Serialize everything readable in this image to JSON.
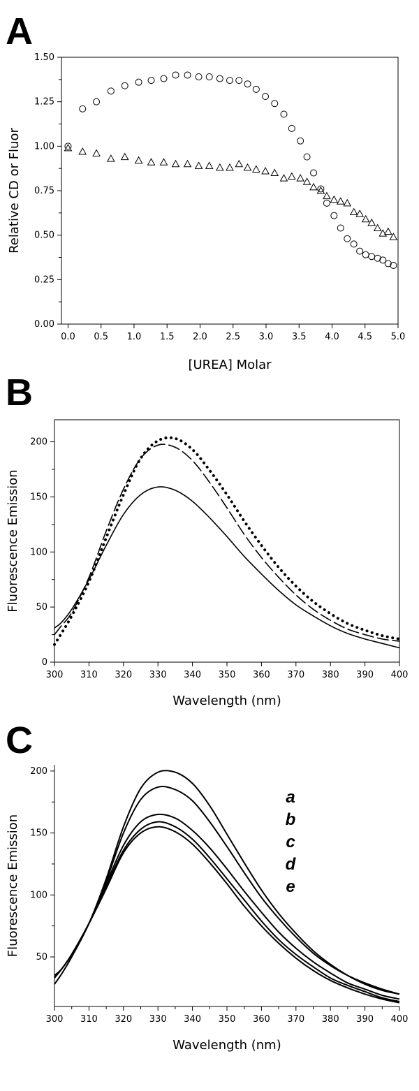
{
  "panels": [
    {
      "letter": "A"
    },
    {
      "letter": "B"
    },
    {
      "letter": "C"
    }
  ],
  "chart_data": [
    {
      "type": "scatter",
      "xlabel": "[UREA] Molar",
      "ylabel": "Relative CD or Fluor",
      "xlim": [
        -0.1,
        5.0
      ],
      "ylim": [
        0,
        1.5
      ],
      "xticks": [
        "0.0",
        "0.5",
        "1.0",
        "1.5",
        "2.0",
        "2.5",
        "3.0",
        "3.5",
        "4.0",
        "4.5",
        "5.0"
      ],
      "yticks": [
        "0.00",
        "0.25",
        "0.50",
        "0.75",
        "1.00",
        "1.25",
        "1.50"
      ],
      "grid": false,
      "series": [
        {
          "marker": "circle",
          "x": [
            0.0,
            0.22,
            0.43,
            0.65,
            0.86,
            1.07,
            1.26,
            1.45,
            1.63,
            1.81,
            1.98,
            2.14,
            2.3,
            2.45,
            2.59,
            2.72,
            2.85,
            2.99,
            3.13,
            3.27,
            3.39,
            3.52,
            3.62,
            3.72,
            3.83,
            3.92,
            4.03,
            4.13,
            4.23,
            4.33,
            4.42,
            4.51,
            4.6,
            4.69,
            4.77,
            4.85,
            4.93
          ],
          "y": [
            1.0,
            1.21,
            1.25,
            1.31,
            1.34,
            1.36,
            1.37,
            1.38,
            1.4,
            1.4,
            1.39,
            1.39,
            1.38,
            1.37,
            1.37,
            1.35,
            1.32,
            1.28,
            1.24,
            1.18,
            1.1,
            1.03,
            0.94,
            0.85,
            0.76,
            0.68,
            0.61,
            0.54,
            0.48,
            0.45,
            0.41,
            0.39,
            0.38,
            0.37,
            0.36,
            0.34,
            0.33
          ]
        },
        {
          "marker": "triangle",
          "x": [
            0.0,
            0.22,
            0.43,
            0.65,
            0.86,
            1.07,
            1.26,
            1.45,
            1.63,
            1.81,
            1.98,
            2.14,
            2.3,
            2.45,
            2.59,
            2.72,
            2.85,
            2.99,
            3.13,
            3.27,
            3.39,
            3.52,
            3.62,
            3.72,
            3.83,
            3.92,
            4.03,
            4.13,
            4.23,
            4.33,
            4.42,
            4.51,
            4.6,
            4.69,
            4.77,
            4.85,
            4.93
          ],
          "y": [
            0.99,
            0.97,
            0.96,
            0.93,
            0.94,
            0.92,
            0.91,
            0.91,
            0.9,
            0.9,
            0.89,
            0.89,
            0.88,
            0.88,
            0.9,
            0.88,
            0.87,
            0.86,
            0.85,
            0.82,
            0.83,
            0.82,
            0.8,
            0.77,
            0.75,
            0.72,
            0.7,
            0.69,
            0.68,
            0.63,
            0.62,
            0.59,
            0.57,
            0.54,
            0.51,
            0.52,
            0.49
          ]
        }
      ]
    },
    {
      "type": "line",
      "xlabel": "Wavelength (nm)",
      "ylabel": "Fluorescence Emission",
      "xlim": [
        300,
        400
      ],
      "ylim": [
        0,
        220
      ],
      "xticks": [
        "300",
        "310",
        "320",
        "330",
        "340",
        "350",
        "360",
        "370",
        "380",
        "390",
        "400"
      ],
      "yticks": [
        "0",
        "50",
        "100",
        "150",
        "200"
      ],
      "grid": false,
      "x": [
        300,
        302,
        305,
        310,
        315,
        320,
        325,
        330,
        335,
        340,
        345,
        350,
        355,
        360,
        365,
        370,
        375,
        380,
        385,
        390,
        395,
        400
      ],
      "series": [
        {
          "style": "solid",
          "values": [
            31,
            36,
            48,
            75,
            106,
            134,
            152,
            159,
            156,
            146,
            131,
            114,
            96,
            80,
            65,
            52,
            42,
            33,
            26,
            21,
            17,
            13
          ]
        },
        {
          "style": "dashed",
          "values": [
            25,
            33,
            45,
            77,
            119,
            157,
            185,
            197,
            195,
            183,
            163,
            140,
            116,
            95,
            77,
            61,
            48,
            38,
            30,
            25,
            21,
            19
          ]
        },
        {
          "style": "dotted",
          "values": [
            16,
            26,
            42,
            73,
            113,
            152,
            185,
            201,
            203,
            193,
            174,
            152,
            128,
            106,
            86,
            69,
            55,
            44,
            35,
            29,
            24,
            21
          ]
        }
      ]
    },
    {
      "type": "line",
      "xlabel": "Wavelength (nm)",
      "ylabel": "Fluorescence Emission",
      "xlim": [
        300,
        400
      ],
      "ylim": [
        10,
        205
      ],
      "xticks": [
        "300",
        "310",
        "320",
        "330",
        "340",
        "350",
        "360",
        "370",
        "380",
        "390",
        "400"
      ],
      "yticks": [
        "50",
        "100",
        "150",
        "200"
      ],
      "grid": false,
      "legend_labels": [
        "a",
        "b",
        "c",
        "d",
        "e"
      ],
      "x": [
        300,
        302,
        305,
        310,
        315,
        320,
        325,
        330,
        335,
        340,
        345,
        350,
        355,
        360,
        365,
        370,
        375,
        380,
        385,
        390,
        395,
        400
      ],
      "series": [
        {
          "values": [
            28,
            36,
            50,
            77,
            113,
            155,
            186,
            199,
            199,
            190,
            172,
            149,
            126,
            104,
            85,
            69,
            55,
            44,
            35,
            28,
            23,
            20
          ]
        },
        {
          "values": [
            33,
            40,
            52,
            77,
            111,
            150,
            177,
            187,
            185,
            176,
            159,
            139,
            118,
            98,
            81,
            66,
            53,
            43,
            35,
            29,
            24,
            20
          ]
        },
        {
          "values": [
            34,
            40,
            52,
            77,
            109,
            140,
            159,
            165,
            162,
            152,
            138,
            121,
            103,
            86,
            70,
            57,
            46,
            37,
            29,
            24,
            19,
            16
          ]
        },
        {
          "values": [
            35,
            40,
            52,
            77,
            107,
            136,
            153,
            159,
            155,
            145,
            130,
            113,
            96,
            79,
            64,
            52,
            42,
            33,
            27,
            22,
            17,
            14
          ]
        },
        {
          "values": [
            35,
            40,
            52,
            77,
            105,
            134,
            150,
            155,
            151,
            141,
            126,
            109,
            91,
            75,
            61,
            49,
            39,
            31,
            25,
            20,
            16,
            13
          ]
        }
      ]
    }
  ]
}
